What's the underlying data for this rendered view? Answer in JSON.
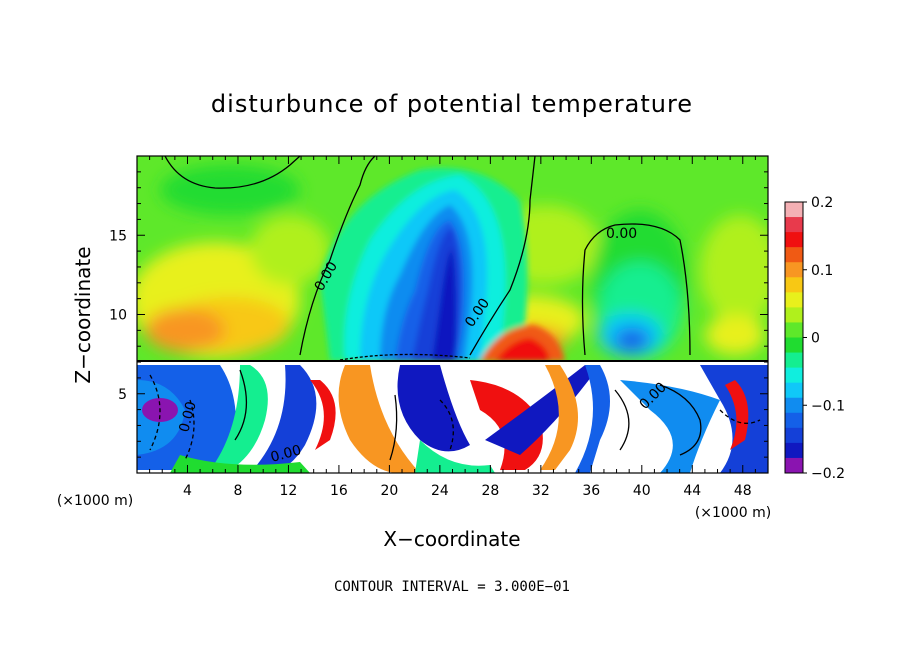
{
  "chart_data": {
    "type": "heatmap",
    "title": "disturbunce of potential temperature",
    "xlabel": "X−coordinate",
    "ylabel": "Z−coordinate",
    "x_unit_label": "(×1000 m)",
    "x_unit_label_right": "(×1000 m)",
    "xlim": [
      0,
      50
    ],
    "ylim": [
      0,
      20
    ],
    "x_ticks": [
      "4",
      "8",
      "12",
      "16",
      "20",
      "24",
      "28",
      "32",
      "36",
      "40",
      "44",
      "48"
    ],
    "y_ticks": [
      "5",
      "10",
      "15"
    ],
    "colorbar": {
      "range": [
        -0.2,
        0.2
      ],
      "tick_labels": [
        "0.2",
        "0.1",
        "0",
        "−0.1",
        "−0.2"
      ],
      "colors": [
        "#f4b0b4",
        "#e83a4c",
        "#f01010",
        "#f05a14",
        "#f89622",
        "#f8c814",
        "#e8f01c",
        "#b0f01c",
        "#5ee82a",
        "#20dc30",
        "#14ee90",
        "#10eede",
        "#10c8f8",
        "#108cf0",
        "#1460e8",
        "#1440d8",
        "#1018c0",
        "#8a14b0"
      ]
    },
    "contour_labels": [
      "0.00",
      "0.00",
      "0.00",
      "0.00",
      "0.00",
      "0.00"
    ],
    "footnote": "CONTOUR INTERVAL = 3.000E−01"
  }
}
